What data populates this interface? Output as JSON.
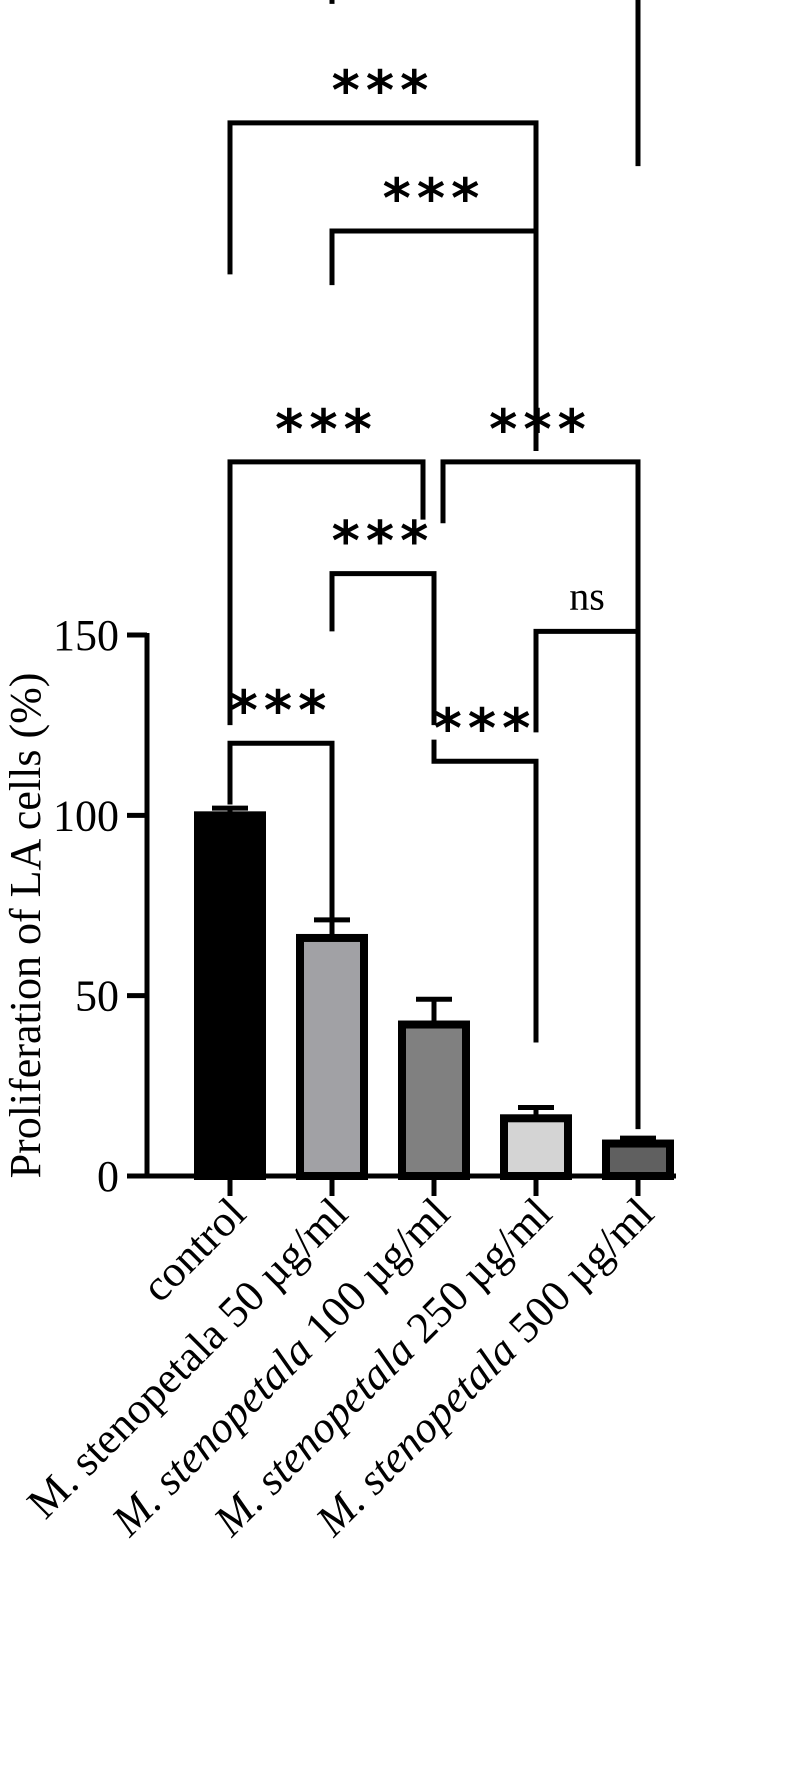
{
  "chart_data": {
    "type": "bar",
    "ylabel": "Proliferation  of LA cells (%)",
    "ylim": [
      0,
      150
    ],
    "yticks": [
      0,
      50,
      100,
      150
    ],
    "categories": [
      {
        "label": "control",
        "parts": [
          {
            "text": "control",
            "italic": false
          }
        ]
      },
      {
        "label": "M. stenopetala 50 µg/ml",
        "parts": [
          {
            "text": "M. stenopetala 50 µg/ml",
            "italic": false
          }
        ]
      },
      {
        "label": "M. stenopetala 100 µg/ml",
        "parts": [
          {
            "text": "M. stenopetala",
            "italic": true
          },
          {
            "text": " 100 µg/ml",
            "italic": false
          }
        ]
      },
      {
        "label": "M. stenopetala 250 µg/ml",
        "parts": [
          {
            "text": "M. stenopetala",
            "italic": true
          },
          {
            "text": " 250 µg/ml",
            "italic": false
          }
        ]
      },
      {
        "label": "M. stenopetala 500 µg/ml",
        "parts": [
          {
            "text": "M. stenopetala",
            "italic": true
          },
          {
            "text": " 500 µg/ml",
            "italic": false
          }
        ]
      }
    ],
    "values": [
      100,
      66,
      42,
      16,
      9
    ],
    "errors": [
      2,
      5,
      7,
      3,
      1.5
    ],
    "bar_colors": [
      "#000000",
      "#a1a1a5",
      "#808080",
      "#d4d4d4",
      "#606060"
    ],
    "comparisons": [
      {
        "from": 0,
        "to": 1,
        "label": "***",
        "left_end": 103,
        "right_end": 66,
        "top": 120
      },
      {
        "from": 3,
        "to": 4,
        "label": "ns",
        "left_end": 123,
        "right_end": 13,
        "top": 151
      },
      {
        "from": 1,
        "to": 2,
        "label": "***",
        "left_end": 151,
        "right_end": 125,
        "top": 167
      },
      {
        "from": 2,
        "to": 3,
        "label": "***",
        "left_end": 121,
        "right_end": 37,
        "top": 115
      },
      {
        "from": 0,
        "to": 2,
        "label": "***",
        "left_end": 125,
        "right_end": 182,
        "top": 198
      },
      {
        "from": 2,
        "to": 4,
        "label": "***",
        "left_end": 181,
        "right_end": 150,
        "top": 198
      },
      {
        "from": 1,
        "to": 3,
        "label": "***",
        "left_end": 247,
        "right_end": 229,
        "top": 262
      },
      {
        "from": 0,
        "to": 3,
        "label": "***",
        "left_end": 250,
        "right_end": 201,
        "top": 292
      },
      {
        "from": 1,
        "to": 4,
        "label": "***",
        "left_end": 325,
        "right_end": 280,
        "top": 372
      },
      {
        "from": 0,
        "to": 4,
        "label": "***",
        "left_end": 346,
        "right_end": 308,
        "top": 403
      }
    ]
  }
}
